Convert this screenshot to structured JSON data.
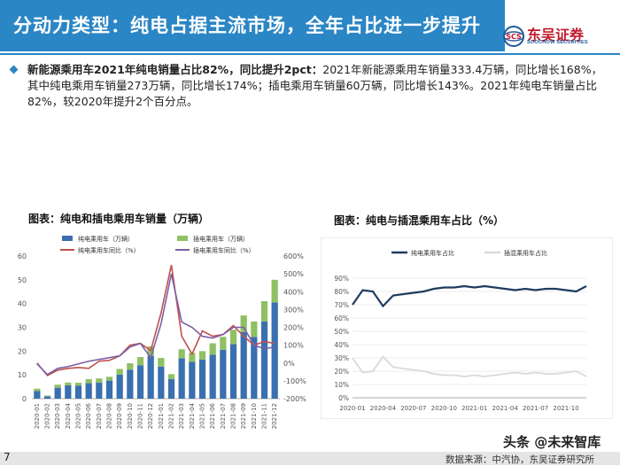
{
  "header": {
    "title": "分动力类型：纯电占据主流市场，全年占比进一步提升",
    "logo_name": "东吴证券",
    "logo_en": "SOOCHOW SECURITIES",
    "logo_mark_text": "SCS",
    "brand_color": "#2b86c5"
  },
  "summary": {
    "highlight": "新能源乘用车2021年纯电销量占比82%，同比提升2pct：",
    "body": "2021年新能源乘用车销量333.4万辆，同比增长168%，其中纯电乘用车销量273万辆，同比增长174%；插电乘用车销量60万辆，同比增长143%。2021年纯电车销量占比82%，较2020年提升2个百分点。"
  },
  "left_chart_title": "图表：纯电和插电乘用车销量（万辆）",
  "right_chart_title": "图表：纯电与插混乘用车占比（%）",
  "page_number": "7",
  "source": "数据来源：中汽协，东吴证券研究所",
  "watermark": "头条 @未来智库",
  "chart_data": [
    {
      "type": "bar",
      "title": "图表：纯电和插电乘用车销量（万辆）",
      "stacked": true,
      "categories": [
        "2020-01",
        "2020-02",
        "2020-03",
        "2020-04",
        "2020-05",
        "2020-06",
        "2020-07",
        "2020-08",
        "2020-09",
        "2020-10",
        "2020-11",
        "2020-12",
        "2021-01",
        "2021-02",
        "2021-03",
        "2021-04",
        "2021-05",
        "2021-06",
        "2021-07",
        "2021-08",
        "2021-09",
        "2021-10",
        "2021-11",
        "2021-12"
      ],
      "series": [
        {
          "name": "纯电乘用车（万辆）",
          "type": "bar",
          "axis": "left",
          "color": "#3a6fb0",
          "values": [
            3.2,
            1.0,
            4.6,
            5.6,
            5.5,
            6.5,
            6.7,
            7.6,
            10.1,
            12.2,
            14.0,
            18.0,
            13.5,
            8.3,
            17.0,
            15.5,
            16.5,
            18.5,
            20.5,
            23.0,
            28.0,
            26.0,
            32.5,
            40.5
          ]
        },
        {
          "name": "插电乘用车（万辆）",
          "type": "bar",
          "axis": "left",
          "color": "#8fc063",
          "values": [
            1.0,
            0.3,
            1.3,
            1.2,
            1.2,
            1.7,
            1.8,
            1.6,
            2.4,
            2.7,
            3.5,
            4.0,
            3.6,
            2.0,
            3.8,
            3.8,
            3.5,
            4.8,
            5.5,
            6.0,
            7.0,
            6.5,
            8.5,
            9.5
          ]
        },
        {
          "name": "纯电乘用车同比（%）",
          "type": "line",
          "axis": "right",
          "color": "#c0504d",
          "values": [
            0,
            -70,
            -40,
            -30,
            -25,
            -30,
            10,
            15,
            40,
            100,
            110,
            70,
            280,
            550,
            150,
            50,
            180,
            150,
            160,
            210,
            150,
            100,
            120,
            110
          ]
        },
        {
          "name": "插电乘用车同比（%）",
          "type": "line",
          "axis": "right",
          "color": "#7c5fa6",
          "values": [
            -5,
            -65,
            -30,
            -20,
            -5,
            10,
            20,
            30,
            40,
            90,
            110,
            30,
            220,
            500,
            230,
            200,
            150,
            140,
            160,
            200,
            200,
            100,
            80,
            90
          ]
        }
      ],
      "ylim_left": [
        0,
        60
      ],
      "yticks_left": [
        "0",
        "10",
        "20",
        "30",
        "40",
        "50",
        "60"
      ],
      "ylim_right": [
        -200,
        600
      ],
      "yticks_right": [
        "-200%",
        "-100%",
        "0%",
        "100%",
        "200%",
        "300%",
        "400%",
        "500%",
        "600%"
      ],
      "legend": "top"
    },
    {
      "type": "line",
      "title": "图表：纯电与插混乘用车占比（%）",
      "x": [
        "2020-01",
        "2020-02",
        "2020-03",
        "2020-04",
        "2020-05",
        "2020-06",
        "2020-07",
        "2020-08",
        "2020-09",
        "2020-10",
        "2020-11",
        "2020-12",
        "2021-01",
        "2021-02",
        "2021-03",
        "2021-04",
        "2021-05",
        "2021-06",
        "2021-07",
        "2021-08",
        "2021-09",
        "2021-10",
        "2021-11",
        "2021-12"
      ],
      "xticks": [
        "2020-01",
        "2020-04",
        "2020-07",
        "2020-10",
        "2021-01",
        "2021-04",
        "2021-07",
        "2021-10"
      ],
      "series": [
        {
          "name": "纯电乘用车占比",
          "color": "#1f3b5f",
          "values": [
            70,
            81,
            80,
            69,
            77,
            78,
            79,
            80,
            82,
            83,
            83,
            84,
            83,
            84,
            83,
            82,
            81,
            82,
            81,
            82,
            82,
            81,
            80,
            84
          ]
        },
        {
          "name": "插混乘用车占比",
          "color": "#d9d9d9",
          "values": [
            30,
            19,
            20,
            31,
            23,
            22,
            21,
            20,
            18,
            17,
            17,
            16,
            17,
            16,
            17,
            18,
            19,
            18,
            19,
            18,
            18,
            19,
            20,
            16
          ]
        }
      ],
      "ylim": [
        0,
        90
      ],
      "yticks": [
        "0%",
        "10%",
        "20%",
        "30%",
        "40%",
        "50%",
        "60%",
        "70%",
        "80%",
        "90%"
      ],
      "legend": "top"
    }
  ]
}
